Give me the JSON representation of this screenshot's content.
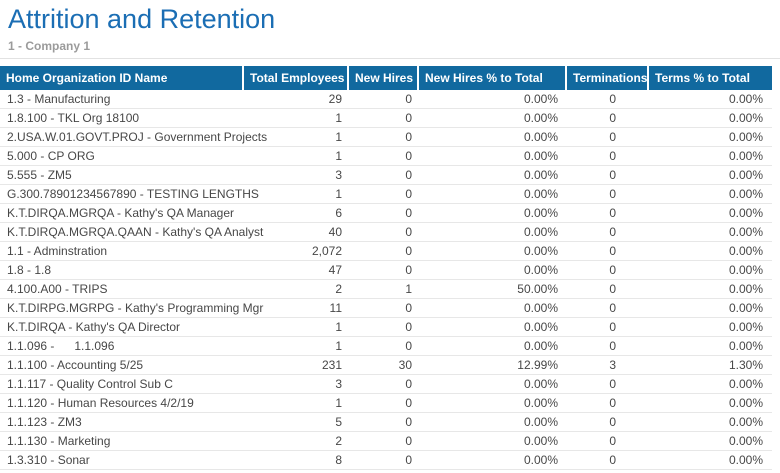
{
  "page": {
    "title": "Attrition and Retention",
    "subtitle": "1 - Company 1"
  },
  "colors": {
    "title": "#1b6eb4",
    "header_bg": "#11699f",
    "header_text": "#ffffff",
    "body_text": "#474747",
    "subtitle_text": "#9b9b9b",
    "row_border": "#e7e7e7",
    "divider": "#e2e2e2"
  },
  "table": {
    "columns": [
      {
        "label": "Home Organization ID Name",
        "align": "left"
      },
      {
        "label": "Total Employees",
        "align": "right"
      },
      {
        "label": "New Hires",
        "align": "right"
      },
      {
        "label": "New Hires % to Total",
        "align": "right"
      },
      {
        "label": "Terminations",
        "align": "right"
      },
      {
        "label": "Terms % to Total",
        "align": "right"
      }
    ],
    "rows": [
      [
        "1.3 - Manufacturing",
        "29",
        "0",
        "0.00%",
        "0",
        "0.00%"
      ],
      [
        "1.8.100 - TKL Org 18100",
        "1",
        "0",
        "0.00%",
        "0",
        "0.00%"
      ],
      [
        "2.USA.W.01.GOVT.PROJ - Government Projects",
        "1",
        "0",
        "0.00%",
        "0",
        "0.00%"
      ],
      [
        "5.000 - CP ORG",
        "1",
        "0",
        "0.00%",
        "0",
        "0.00%"
      ],
      [
        "5.555 - ZM5",
        "3",
        "0",
        "0.00%",
        "0",
        "0.00%"
      ],
      [
        "G.300.78901234567890 - TESTING LENGTHS",
        "1",
        "0",
        "0.00%",
        "0",
        "0.00%"
      ],
      [
        "K.T.DIRQA.MGRQA - Kathy's QA Manager",
        "6",
        "0",
        "0.00%",
        "0",
        "0.00%"
      ],
      [
        "K.T.DIRQA.MGRQA.QAAN - Kathy's QA Analyst",
        "40",
        "0",
        "0.00%",
        "0",
        "0.00%"
      ],
      [
        "1.1 - Adminstration",
        "2,072",
        "0",
        "0.00%",
        "0",
        "0.00%"
      ],
      [
        "1.8 - 1.8",
        "47",
        "0",
        "0.00%",
        "0",
        "0.00%"
      ],
      [
        "4.100.A00 - TRIPS",
        "2",
        "1",
        "50.00%",
        "0",
        "0.00%"
      ],
      [
        "K.T.DIRPG.MGRPG - Kathy's Programming Mgr",
        "11",
        "0",
        "0.00%",
        "0",
        "0.00%"
      ],
      [
        "K.T.DIRQA - Kathy's QA Director",
        "1",
        "0",
        "0.00%",
        "0",
        "0.00%"
      ],
      [
        "1.1.096 -      1.1.096",
        "1",
        "0",
        "0.00%",
        "0",
        "0.00%"
      ],
      [
        "1.1.100 - Accounting 5/25",
        "231",
        "30",
        "12.99%",
        "3",
        "1.30%"
      ],
      [
        "1.1.117 - Quality Control Sub C",
        "3",
        "0",
        "0.00%",
        "0",
        "0.00%"
      ],
      [
        "1.1.120 - Human Resources 4/2/19",
        "1",
        "0",
        "0.00%",
        "0",
        "0.00%"
      ],
      [
        "1.1.123 - ZM3",
        "5",
        "0",
        "0.00%",
        "0",
        "0.00%"
      ],
      [
        "1.1.130 - Marketing",
        "2",
        "0",
        "0.00%",
        "0",
        "0.00%"
      ],
      [
        "1.3.310 - Sonar",
        "8",
        "0",
        "0.00%",
        "0",
        "0.00%"
      ]
    ]
  }
}
